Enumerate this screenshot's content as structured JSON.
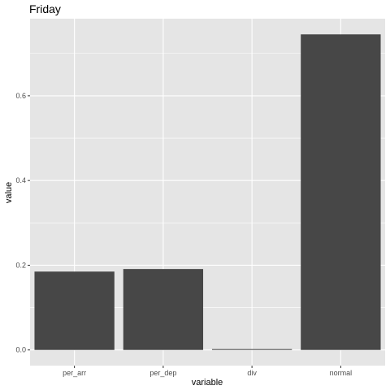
{
  "chart_data": {
    "type": "bar",
    "title": "Friday",
    "xlabel": "variable",
    "ylabel": "value",
    "categories": [
      "per_arr",
      "per_dep",
      "div",
      "normal"
    ],
    "values": [
      0.185,
      0.191,
      0.002,
      0.745
    ],
    "ylim": [
      -0.037,
      0.782
    ],
    "yticks": [
      "0.0",
      "0.2",
      "0.4",
      "0.6"
    ],
    "grid": true,
    "bar_color": "#474747",
    "panel_background": "#e5e5e5",
    "grid_color": "#ffffff"
  }
}
